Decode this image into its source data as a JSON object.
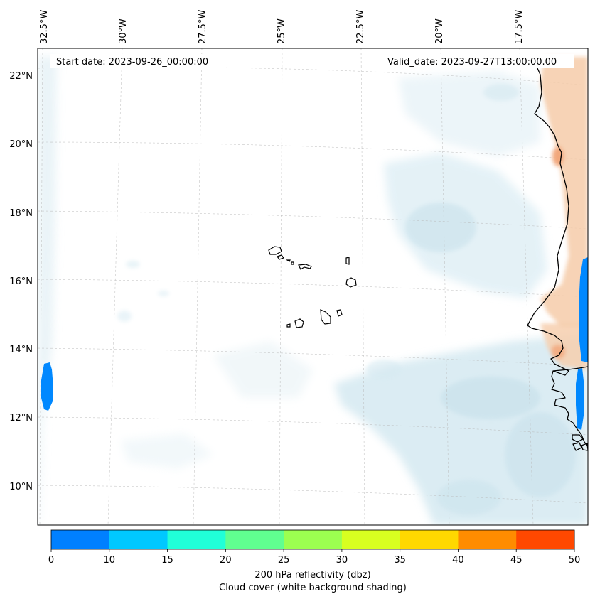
{
  "chart_data": {
    "type": "map",
    "start_date_label": "Start date: 2023-09-26_00:00:00",
    "valid_date_label": "Valid_date: 2023-09-27T13:00:00.00",
    "lon_labels": [
      "32.5°W",
      "30°W",
      "27.5°W",
      "25°W",
      "22.5°W",
      "20°W",
      "17.5°W"
    ],
    "lat_labels": [
      "22°N",
      "20°N",
      "18°N",
      "16°N",
      "14°N",
      "12°N",
      "10°N"
    ],
    "colorbar": {
      "ticks": [
        "0",
        "10",
        "15",
        "20",
        "25",
        "30",
        "35",
        "40",
        "45",
        "50"
      ],
      "colors": [
        "#0080ff",
        "#00c8ff",
        "#20ffd8",
        "#60ff90",
        "#9cff50",
        "#d8ff20",
        "#ffd800",
        "#ff8c00",
        "#ff4800"
      ],
      "label_line1": "200 hPa reflectivity (dbz)",
      "label_line2": "Cloud cover (white background shading)"
    },
    "reflectivity_color": "#0088ff",
    "cloud_color": "#d6eaf2",
    "land_warm_color": "#f6c8a8"
  }
}
